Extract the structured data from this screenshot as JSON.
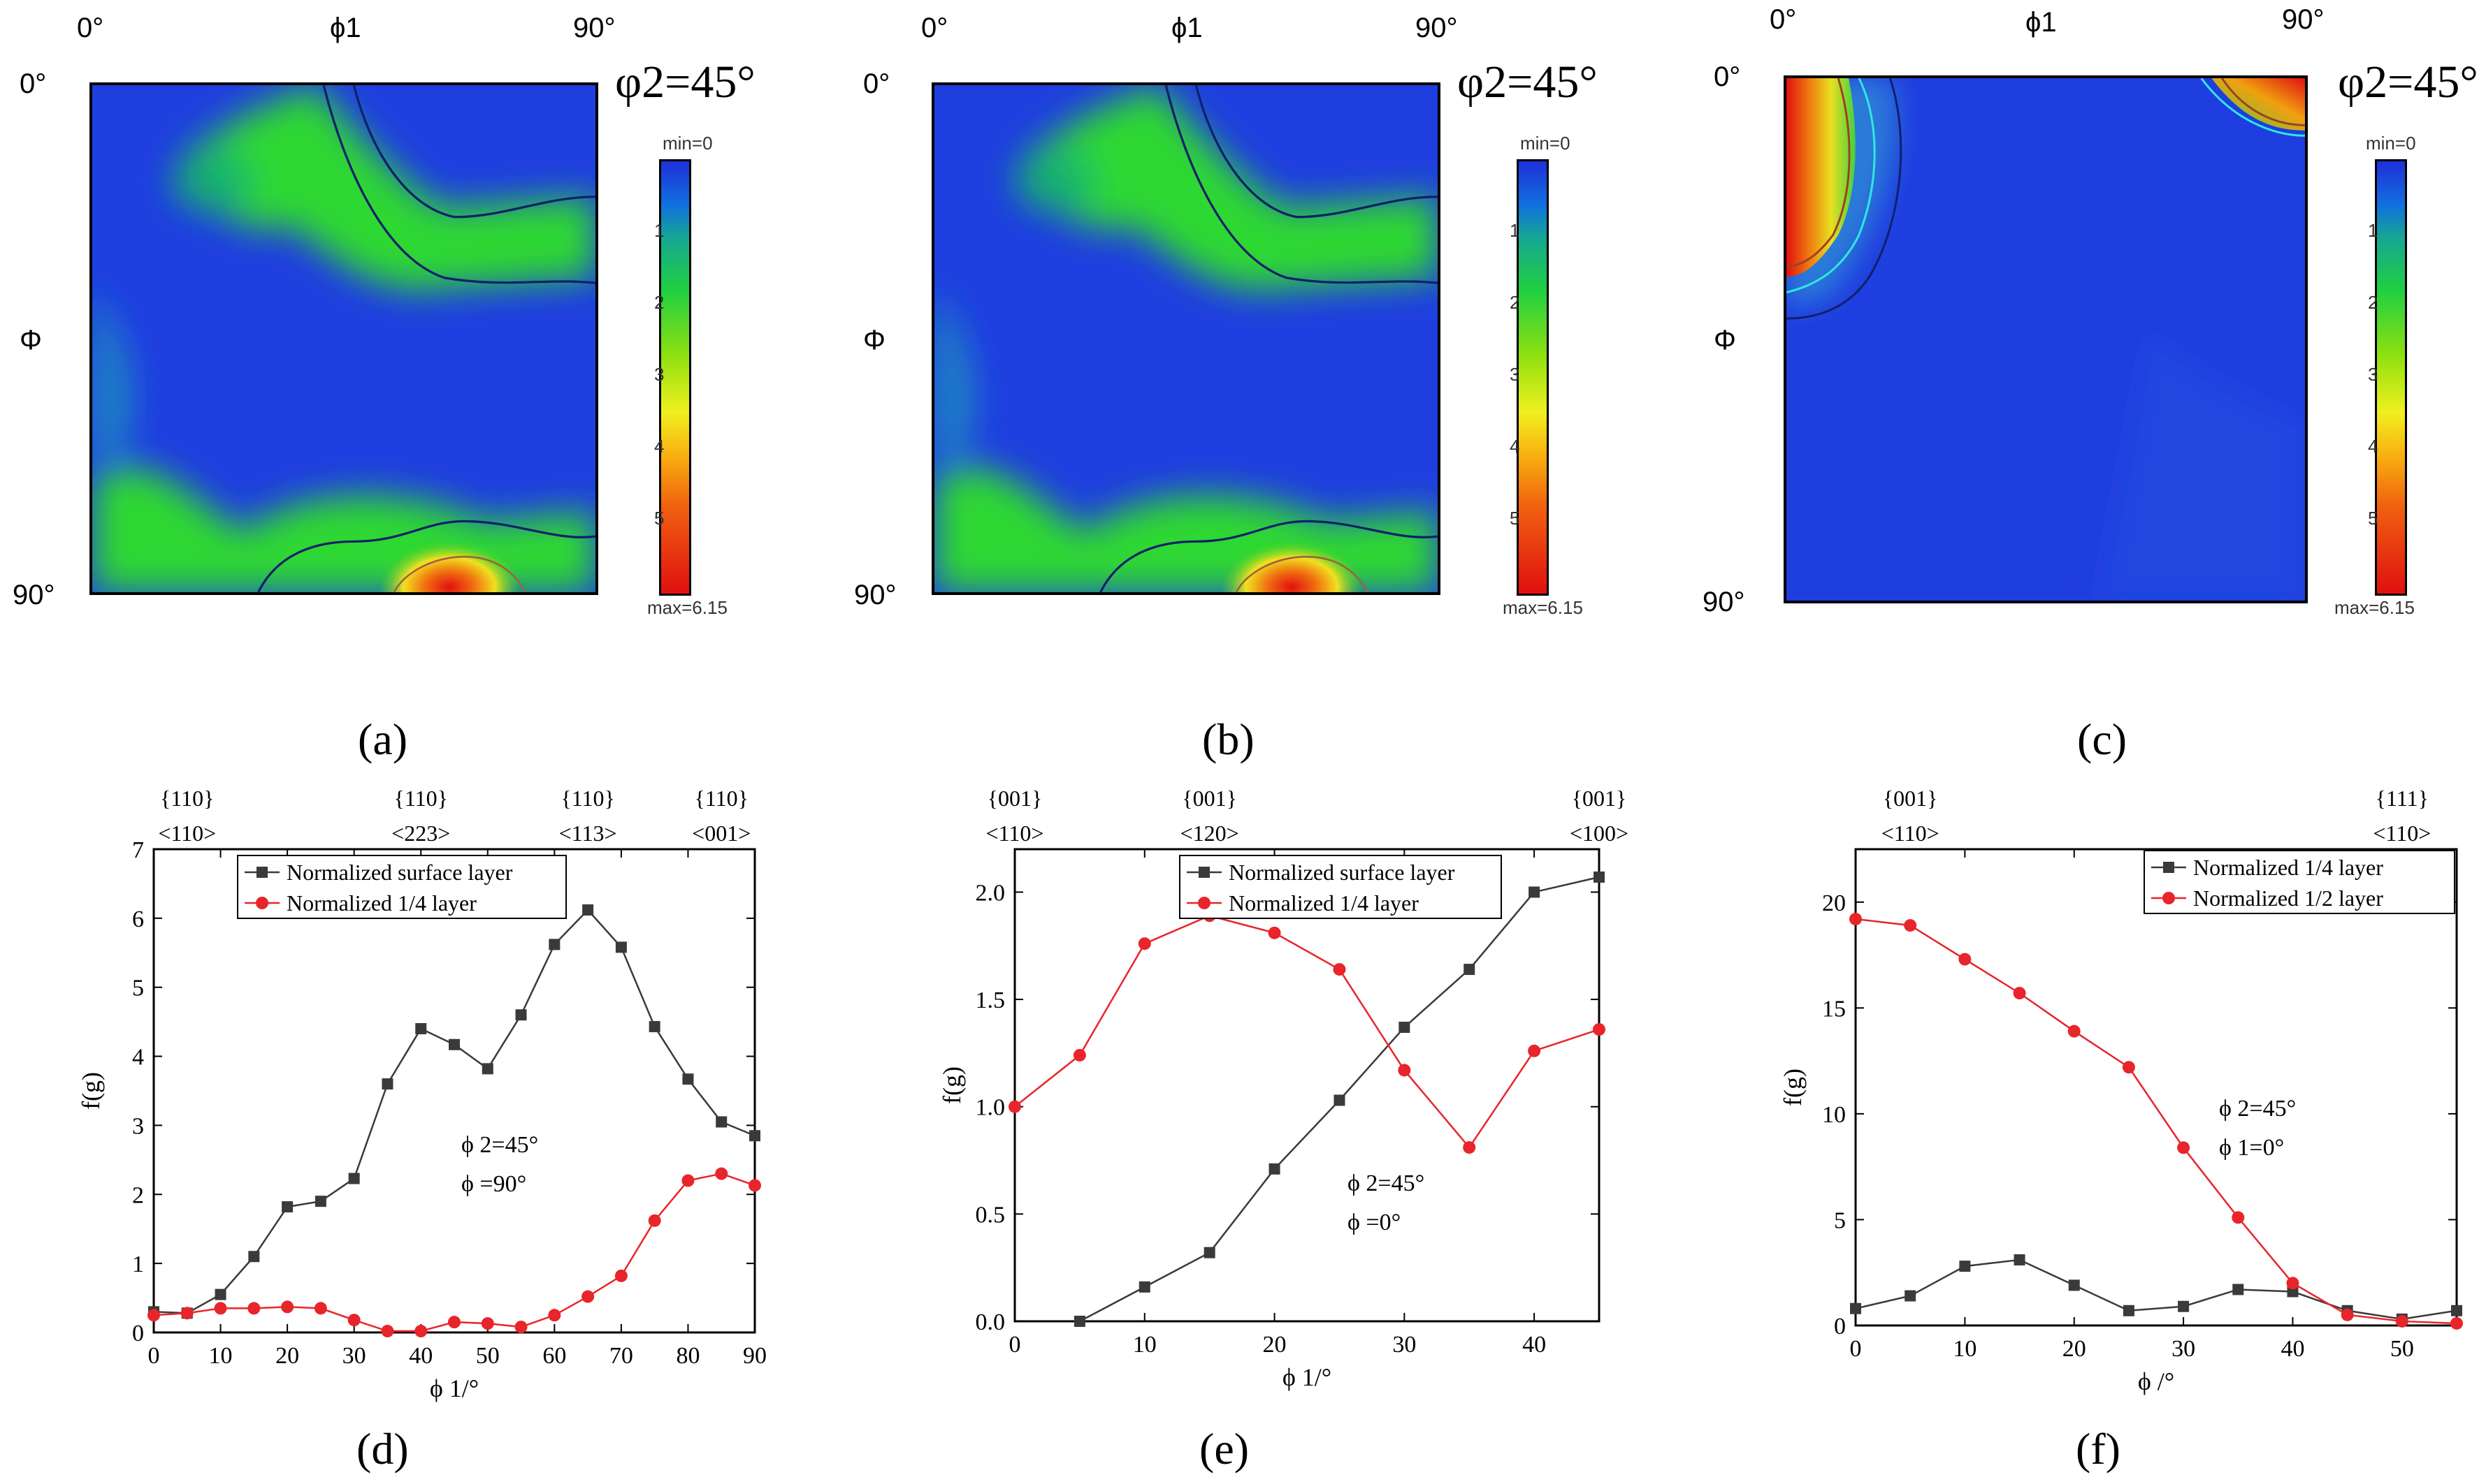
{
  "odf_maps": [
    {
      "id": "a",
      "phi2_label": "φ2=45°",
      "corner_tl": "0°",
      "corner_tr": "90°",
      "phi1_label": "ϕ1",
      "phi_top": "0°",
      "Phi_label": "Φ",
      "phi_bottom": "90°",
      "min_label": "min=0",
      "max_label": "max=6.15",
      "scale_ticks": [
        "1",
        "2",
        "3",
        "4",
        "5"
      ]
    },
    {
      "id": "b",
      "phi2_label": "φ2=45°",
      "corner_tl": "0°",
      "corner_tr": "90°",
      "phi1_label": "ϕ1",
      "phi_top": "0°",
      "Phi_label": "Φ",
      "phi_bottom": "90°",
      "min_label": "min=0",
      "max_label": "max=6.15",
      "scale_ticks": [
        "1",
        "2",
        "3",
        "4",
        "5"
      ]
    },
    {
      "id": "c",
      "phi2_label": "φ2=45°",
      "corner_tl": "0°",
      "corner_tr": "90°",
      "phi1_label": "ϕ1",
      "phi_top": "0°",
      "Phi_label": "Φ",
      "phi_bottom": "90°",
      "min_label": "min=0",
      "max_label": "max=6.15",
      "scale_ticks": [
        "1",
        "2",
        "3",
        "4",
        "5"
      ]
    }
  ],
  "panel_labels": [
    "(a)",
    "(b)",
    "(c)",
    "(d)",
    "(e)",
    "(f)"
  ],
  "chart_data": [
    {
      "id": "d",
      "type": "line",
      "ylabel": "f(g)",
      "xlabel": "ϕ 1/°",
      "xlim": [
        0,
        90
      ],
      "ylim": [
        0,
        7
      ],
      "xticks": [
        0,
        10,
        20,
        30,
        40,
        50,
        60,
        70,
        80,
        90
      ],
      "yticks": [
        0,
        1,
        2,
        3,
        4,
        5,
        6,
        7
      ],
      "top_annotations": [
        {
          "x": 5,
          "l1": "{110}",
          "l2": "<110>"
        },
        {
          "x": 40,
          "l1": "{110}",
          "l2": "<223>"
        },
        {
          "x": 65,
          "l1": "{110}",
          "l2": "<113>"
        },
        {
          "x": 85,
          "l1": "{110}",
          "l2": "<001>"
        }
      ],
      "note": [
        "ϕ 2=45°",
        "ϕ =90°"
      ],
      "series": [
        {
          "name": "Normalized surface layer",
          "color": "#3a3a3a",
          "marker": "square",
          "x": [
            0,
            5,
            10,
            15,
            20,
            25,
            30,
            35,
            40,
            45,
            50,
            55,
            60,
            65,
            70,
            75,
            80,
            85,
            90
          ],
          "y": [
            0.3,
            0.28,
            0.55,
            1.1,
            1.82,
            1.9,
            2.23,
            3.6,
            4.4,
            4.17,
            3.82,
            4.6,
            5.62,
            6.12,
            5.58,
            4.43,
            3.67,
            3.05,
            2.85
          ]
        },
        {
          "name": "Normalized 1/4 layer",
          "color": "#e8252a",
          "marker": "circle",
          "x": [
            0,
            5,
            10,
            15,
            20,
            25,
            30,
            35,
            40,
            45,
            50,
            55,
            60,
            65,
            70,
            75,
            80,
            85,
            90
          ],
          "y": [
            0.25,
            0.28,
            0.35,
            0.35,
            0.37,
            0.35,
            0.18,
            0.02,
            0.02,
            0.15,
            0.13,
            0.08,
            0.25,
            0.52,
            0.82,
            1.62,
            2.2,
            2.3,
            2.13
          ]
        }
      ]
    },
    {
      "id": "e",
      "type": "line",
      "ylabel": "f(g)",
      "xlabel": "ϕ 1/°",
      "xlim": [
        0,
        45
      ],
      "ylim": [
        0,
        2.2
      ],
      "xticks": [
        0,
        10,
        20,
        30,
        40
      ],
      "yticks": [
        0.0,
        0.5,
        1.0,
        1.5,
        2.0
      ],
      "ytick_labels": [
        "0.0",
        "0.5",
        "1.0",
        "1.5",
        "2.0"
      ],
      "top_annotations": [
        {
          "x": 0,
          "l1": "{001}",
          "l2": "<110>"
        },
        {
          "x": 15,
          "l1": "{001}",
          "l2": "<120>"
        },
        {
          "x": 45,
          "l1": "{001}",
          "l2": "<100>"
        }
      ],
      "note": [
        "ϕ 2=45°",
        "ϕ =0°"
      ],
      "series": [
        {
          "name": "Normalized surface layer",
          "color": "#3a3a3a",
          "marker": "square",
          "x": [
            5,
            10,
            15,
            20,
            25,
            30,
            35,
            40,
            45
          ],
          "y": [
            0.0,
            0.16,
            0.32,
            0.71,
            1.03,
            1.37,
            1.64,
            2.0,
            2.07
          ]
        },
        {
          "name": "Normalized 1/4 layer",
          "color": "#e8252a",
          "marker": "circle",
          "x": [
            0,
            5,
            10,
            15,
            20,
            25,
            30,
            35,
            40,
            45
          ],
          "y": [
            1.0,
            1.24,
            1.76,
            1.89,
            1.81,
            1.64,
            1.17,
            0.81,
            1.26,
            1.36
          ]
        }
      ]
    },
    {
      "id": "f",
      "type": "line",
      "ylabel": "f(g)",
      "xlabel": "ϕ /°",
      "xlim": [
        0,
        55
      ],
      "ylim": [
        0,
        22.5
      ],
      "xticks": [
        0,
        10,
        20,
        30,
        40,
        50
      ],
      "yticks": [
        0,
        5,
        10,
        15,
        20
      ],
      "top_annotations": [
        {
          "x": 5,
          "l1": "{001}",
          "l2": "<110>"
        },
        {
          "x": 50,
          "l1": "{111}",
          "l2": "<110>"
        }
      ],
      "note": [
        "ϕ 2=45°",
        "ϕ 1=0°"
      ],
      "series": [
        {
          "name": "Normalized 1/4 layer",
          "color": "#3a3a3a",
          "marker": "square",
          "x": [
            0,
            5,
            10,
            15,
            20,
            25,
            30,
            35,
            40,
            45,
            50,
            55
          ],
          "y": [
            0.8,
            1.4,
            2.8,
            3.1,
            1.9,
            0.7,
            0.9,
            1.7,
            1.6,
            0.7,
            0.3,
            0.7
          ]
        },
        {
          "name": "Normalized 1/2 layer",
          "color": "#e8252a",
          "marker": "circle",
          "x": [
            0,
            5,
            10,
            15,
            20,
            25,
            30,
            35,
            40,
            45,
            50,
            55
          ],
          "y": [
            19.2,
            18.9,
            17.3,
            15.7,
            13.9,
            12.2,
            8.4,
            5.1,
            2.0,
            0.5,
            0.2,
            0.1
          ]
        }
      ]
    }
  ]
}
